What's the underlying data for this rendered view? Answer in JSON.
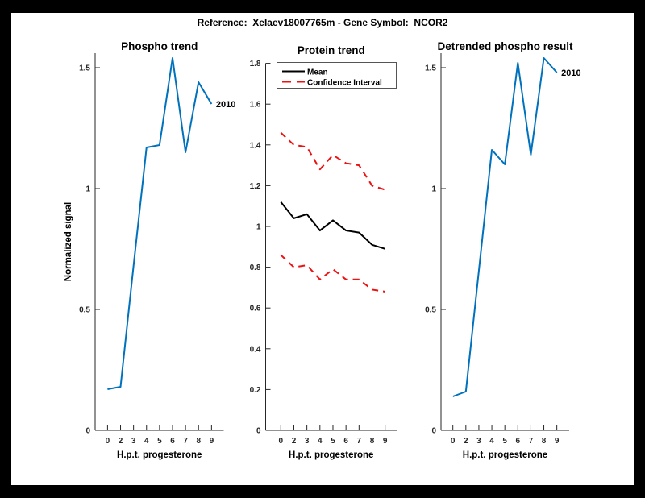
{
  "figure": {
    "title": "Reference:  Xelaev18007765m - Gene Symbol:  NCOR2"
  },
  "palette": {
    "matlab_blue": "#0072BD",
    "ci_red": "#EE1111",
    "mean_black": "#000000",
    "axis_gray": "#262626",
    "background": "#FFFFFF",
    "frame": "#000000"
  },
  "chart_data": [
    {
      "type": "line",
      "title": "Phospho trend",
      "xlabel": "H.p.t. progesterone",
      "ylabel": "Normalized signal",
      "x_tick_labels": [
        "0",
        "2",
        "3",
        "4",
        "5",
        "6",
        "7",
        "8",
        "9"
      ],
      "y_ticks": [
        {
          "v": 0,
          "label": "0"
        },
        {
          "v": 0.5,
          "label": "0.5"
        },
        {
          "v": 1,
          "label": "1"
        },
        {
          "v": 1.5,
          "label": "1.5"
        }
      ],
      "ylim": [
        0,
        1.56
      ],
      "grid": false,
      "legend": null,
      "series": [
        {
          "name": "2010",
          "color": "#0072BD",
          "style": "solid",
          "end_label": "2010",
          "values": [
            0.17,
            0.18,
            0.68,
            1.17,
            1.18,
            1.54,
            1.15,
            1.44,
            1.35
          ]
        }
      ]
    },
    {
      "type": "line",
      "title": "Protein trend",
      "xlabel": "H.p.t. progesterone",
      "ylabel": "",
      "x_tick_labels": [
        "0",
        "2",
        "3",
        "4",
        "5",
        "6",
        "7",
        "8",
        "9"
      ],
      "y_ticks": [
        {
          "v": 0,
          "label": "0"
        },
        {
          "v": 0.2,
          "label": "0.2"
        },
        {
          "v": 0.4,
          "label": "0.4"
        },
        {
          "v": 0.6,
          "label": "0.6"
        },
        {
          "v": 0.8,
          "label": "0.8"
        },
        {
          "v": 1,
          "label": "1"
        },
        {
          "v": 1.2,
          "label": "1.2"
        },
        {
          "v": 1.4,
          "label": "1.4"
        },
        {
          "v": 1.6,
          "label": "1.6"
        },
        {
          "v": 1.8,
          "label": "1.8"
        }
      ],
      "ylim": [
        0,
        1.8
      ],
      "grid": false,
      "legend": {
        "position": "northwest",
        "entries": [
          {
            "label": "Mean",
            "color": "#000000",
            "style": "solid"
          },
          {
            "label": "Confidence Interval",
            "color": "#EE1111",
            "style": "dashed"
          }
        ]
      },
      "series": [
        {
          "name": "Mean",
          "color": "#000000",
          "style": "solid",
          "values": [
            1.12,
            1.04,
            1.06,
            0.98,
            1.03,
            0.98,
            0.97,
            0.91,
            0.89
          ]
        },
        {
          "name": "Confidence Interval upper",
          "color": "#EE1111",
          "style": "dashed",
          "values": [
            1.46,
            1.4,
            1.39,
            1.28,
            1.35,
            1.31,
            1.3,
            1.2,
            1.18
          ]
        },
        {
          "name": "Confidence Interval lower",
          "color": "#EE1111",
          "style": "dashed",
          "values": [
            0.86,
            0.8,
            0.81,
            0.74,
            0.79,
            0.74,
            0.74,
            0.69,
            0.68
          ]
        }
      ]
    },
    {
      "type": "line",
      "title": "Detrended phospho result",
      "xlabel": "H.p.t. progesterone",
      "ylabel": "",
      "x_tick_labels": [
        "0",
        "2",
        "3",
        "4",
        "5",
        "6",
        "7",
        "8",
        "9"
      ],
      "y_ticks": [
        {
          "v": 0,
          "label": "0"
        },
        {
          "v": 0.5,
          "label": "0.5"
        },
        {
          "v": 1,
          "label": "1"
        },
        {
          "v": 1.5,
          "label": "1.5"
        }
      ],
      "ylim": [
        0,
        1.56
      ],
      "grid": false,
      "legend": null,
      "series": [
        {
          "name": "2010",
          "color": "#0072BD",
          "style": "solid",
          "end_label": "2010",
          "values": [
            0.14,
            0.16,
            0.66,
            1.16,
            1.1,
            1.52,
            1.14,
            1.54,
            1.48
          ]
        }
      ]
    }
  ]
}
